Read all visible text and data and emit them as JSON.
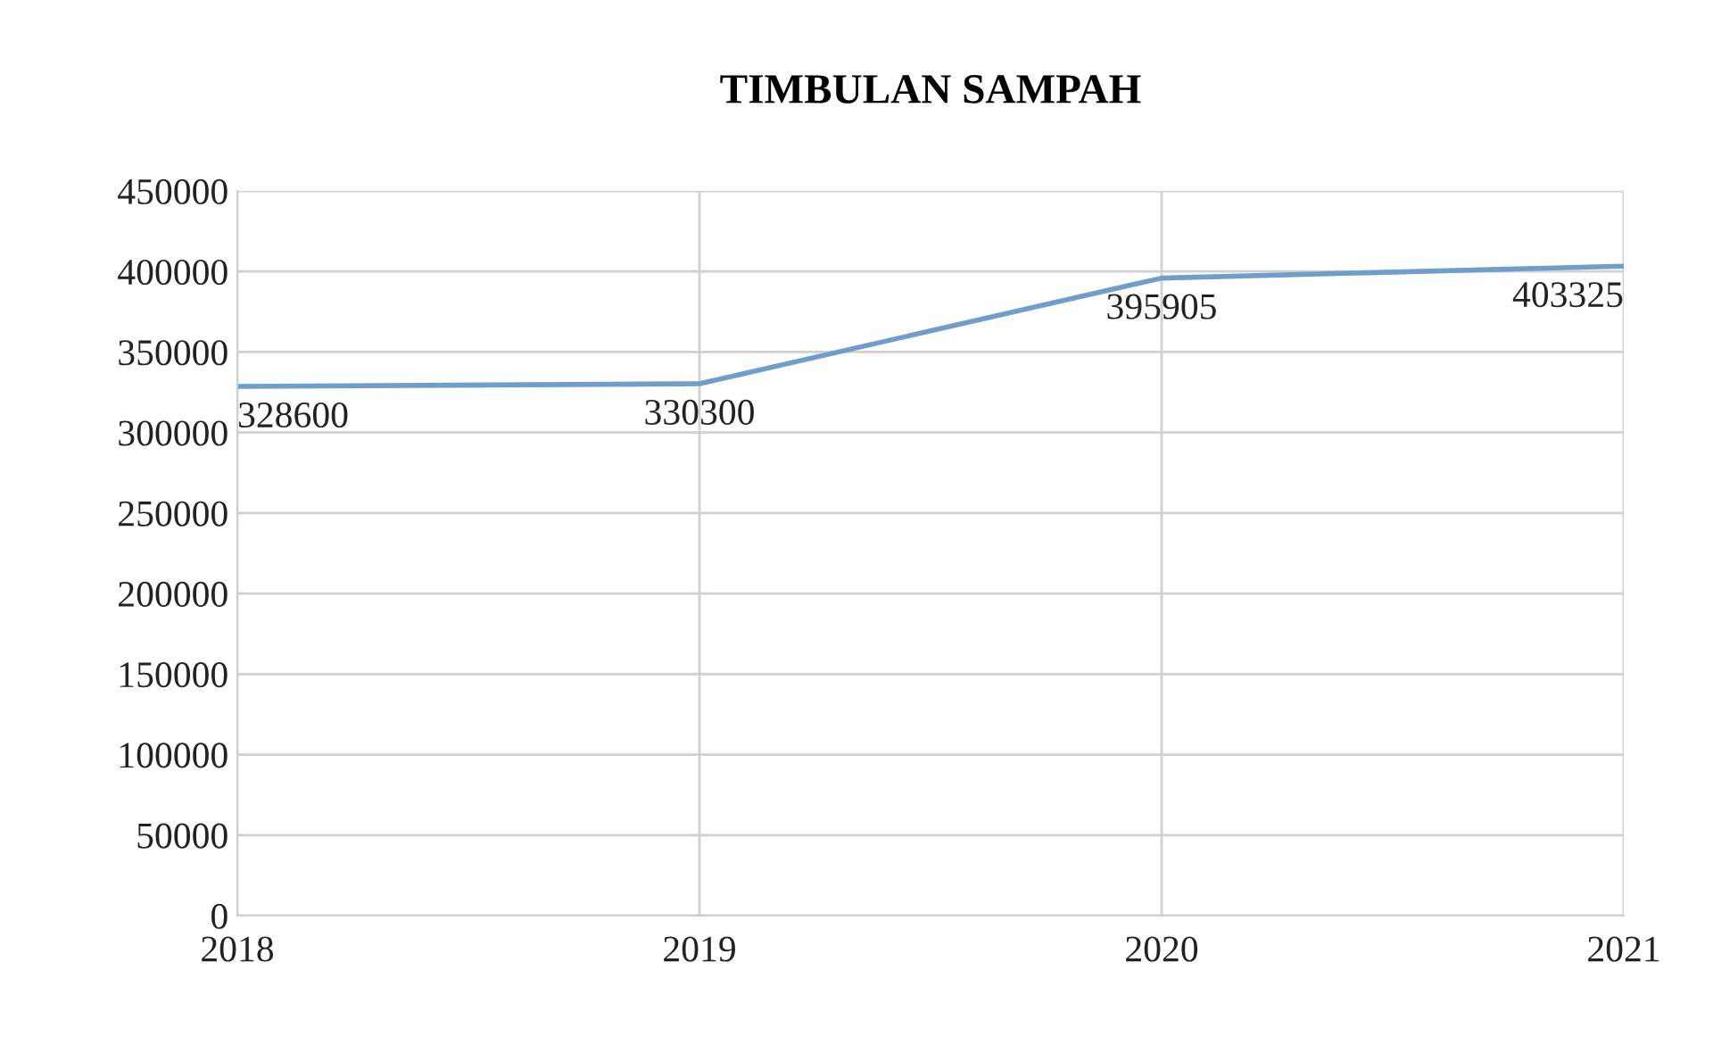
{
  "chart_data": {
    "type": "line",
    "title": "TIMBULAN SAMPAH",
    "categories": [
      "2018",
      "2019",
      "2020",
      "2021"
    ],
    "series": [
      {
        "color": "#6f9ecb",
        "values": [
          328600,
          330300,
          395905,
          403325
        ]
      }
    ],
    "ylim": [
      0,
      450000
    ],
    "yticks": [
      0,
      50000,
      100000,
      150000,
      200000,
      250000,
      300000,
      350000,
      400000,
      450000
    ],
    "grid": true,
    "data_labels": true,
    "marker": "none",
    "line_style": "solid",
    "legend": false
  }
}
